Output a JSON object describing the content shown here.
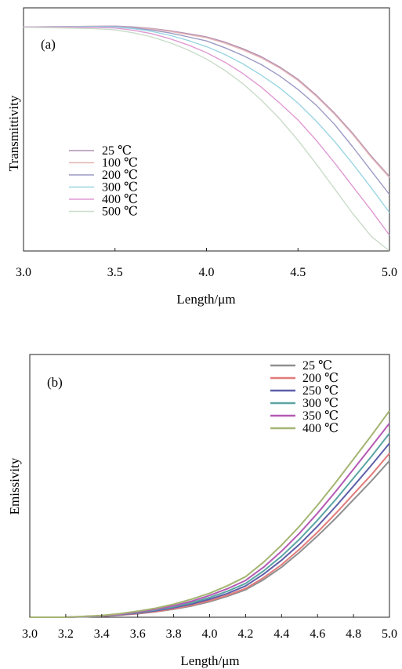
{
  "chart_data": [
    {
      "type": "line",
      "panel_label": "(a)",
      "xlabel": "Length/μm",
      "ylabel": "Transmittivity",
      "xlim": [
        3.0,
        5.0
      ],
      "ylim": [
        0,
        1
      ],
      "x_ticks": [
        "3.0",
        "3.5",
        "4.0",
        "4.5",
        "5.0"
      ],
      "x_tick_values": [
        3.0,
        3.5,
        4.0,
        4.5,
        5.0
      ],
      "grid": false,
      "legend_position": "center-left",
      "x": [
        3.0,
        3.2,
        3.4,
        3.5,
        3.6,
        3.7,
        3.8,
        3.9,
        4.0,
        4.1,
        4.2,
        4.3,
        4.4,
        4.5,
        4.6,
        4.7,
        4.8,
        4.9,
        5.0
      ],
      "series": [
        {
          "name": "25 ℃",
          "color": "#b28fb3",
          "values": [
            0.992,
            0.993,
            0.995,
            0.996,
            0.992,
            0.985,
            0.975,
            0.962,
            0.948,
            0.925,
            0.895,
            0.86,
            0.815,
            0.76,
            0.69,
            0.61,
            0.52,
            0.42,
            0.33
          ]
        },
        {
          "name": "100 ℃",
          "color": "#e5b5b5",
          "values": [
            0.992,
            0.993,
            0.995,
            0.995,
            0.99,
            0.983,
            0.972,
            0.958,
            0.944,
            0.92,
            0.89,
            0.855,
            0.81,
            0.755,
            0.685,
            0.605,
            0.515,
            0.415,
            0.325
          ]
        },
        {
          "name": "200 ℃",
          "color": "#9b9ac5",
          "values": [
            0.992,
            0.993,
            0.994,
            0.994,
            0.988,
            0.978,
            0.965,
            0.948,
            0.93,
            0.9,
            0.865,
            0.825,
            0.775,
            0.715,
            0.645,
            0.56,
            0.46,
            0.355,
            0.25
          ]
        },
        {
          "name": "300 ℃",
          "color": "#9ad6e3",
          "values": [
            0.992,
            0.992,
            0.993,
            0.992,
            0.984,
            0.972,
            0.955,
            0.932,
            0.905,
            0.87,
            0.828,
            0.778,
            0.722,
            0.655,
            0.575,
            0.485,
            0.385,
            0.28,
            0.17
          ]
        },
        {
          "name": "400 ℃",
          "color": "#e09ad3",
          "values": [
            0.992,
            0.991,
            0.99,
            0.987,
            0.977,
            0.962,
            0.94,
            0.912,
            0.878,
            0.836,
            0.785,
            0.725,
            0.655,
            0.58,
            0.49,
            0.39,
            0.285,
            0.18,
            0.07
          ]
        },
        {
          "name": "500 ℃",
          "color": "#c9dcc9",
          "values": [
            0.99,
            0.988,
            0.984,
            0.979,
            0.966,
            0.948,
            0.922,
            0.89,
            0.85,
            0.8,
            0.74,
            0.668,
            0.585,
            0.49,
            0.385,
            0.275,
            0.165,
            0.065,
            -0.02
          ]
        }
      ]
    },
    {
      "type": "line",
      "panel_label": "(b)",
      "xlabel": "Length/μm",
      "ylabel": "Emissivity",
      "xlim": [
        3.0,
        5.0
      ],
      "ylim": [
        0,
        1
      ],
      "x_ticks": [
        "3.0",
        "3.2",
        "3.4",
        "3.6",
        "3.8",
        "4.0",
        "4.2",
        "4.4",
        "4.6",
        "4.8",
        "5.0"
      ],
      "x_tick_values": [
        3.0,
        3.2,
        3.4,
        3.6,
        3.8,
        4.0,
        4.2,
        4.4,
        4.6,
        4.8,
        5.0
      ],
      "grid": false,
      "legend_position": "top-right",
      "x": [
        3.0,
        3.2,
        3.4,
        3.5,
        3.6,
        3.7,
        3.8,
        3.9,
        4.0,
        4.1,
        4.2,
        4.3,
        4.4,
        4.5,
        4.6,
        4.7,
        4.8,
        4.9,
        5.0
      ],
      "series": [
        {
          "name": "25 ℃",
          "color": "#8f8f8f",
          "values": [
            0.0,
            0.0,
            0.004,
            0.008,
            0.014,
            0.022,
            0.032,
            0.045,
            0.062,
            0.084,
            0.11,
            0.15,
            0.2,
            0.26,
            0.325,
            0.395,
            0.47,
            0.545,
            0.625
          ]
        },
        {
          "name": "200 ℃",
          "color": "#e27b7b",
          "values": [
            0.0,
            0.0,
            0.004,
            0.009,
            0.015,
            0.023,
            0.034,
            0.048,
            0.066,
            0.088,
            0.115,
            0.158,
            0.21,
            0.272,
            0.34,
            0.414,
            0.492,
            0.57,
            0.655
          ]
        },
        {
          "name": "250 ℃",
          "color": "#5d5fa8",
          "values": [
            0.0,
            0.0,
            0.005,
            0.01,
            0.017,
            0.026,
            0.038,
            0.053,
            0.072,
            0.095,
            0.125,
            0.172,
            0.228,
            0.292,
            0.364,
            0.442,
            0.524,
            0.608,
            0.695
          ]
        },
        {
          "name": "300 ℃",
          "color": "#5aa5a2",
          "values": [
            0.0,
            0.0,
            0.005,
            0.011,
            0.019,
            0.029,
            0.042,
            0.058,
            0.079,
            0.104,
            0.135,
            0.185,
            0.244,
            0.312,
            0.388,
            0.47,
            0.556,
            0.643,
            0.735
          ]
        },
        {
          "name": "350 ℃",
          "color": "#b45ab3",
          "values": [
            0.0,
            0.0,
            0.006,
            0.012,
            0.021,
            0.032,
            0.046,
            0.064,
            0.087,
            0.114,
            0.147,
            0.2,
            0.264,
            0.336,
            0.416,
            0.502,
            0.592,
            0.683,
            0.775
          ]
        },
        {
          "name": "400 ℃",
          "color": "#a4b572",
          "values": [
            0.0,
            0.0,
            0.007,
            0.014,
            0.024,
            0.036,
            0.052,
            0.072,
            0.096,
            0.126,
            0.162,
            0.22,
            0.288,
            0.364,
            0.448,
            0.538,
            0.632,
            0.727,
            0.825
          ]
        }
      ]
    }
  ]
}
